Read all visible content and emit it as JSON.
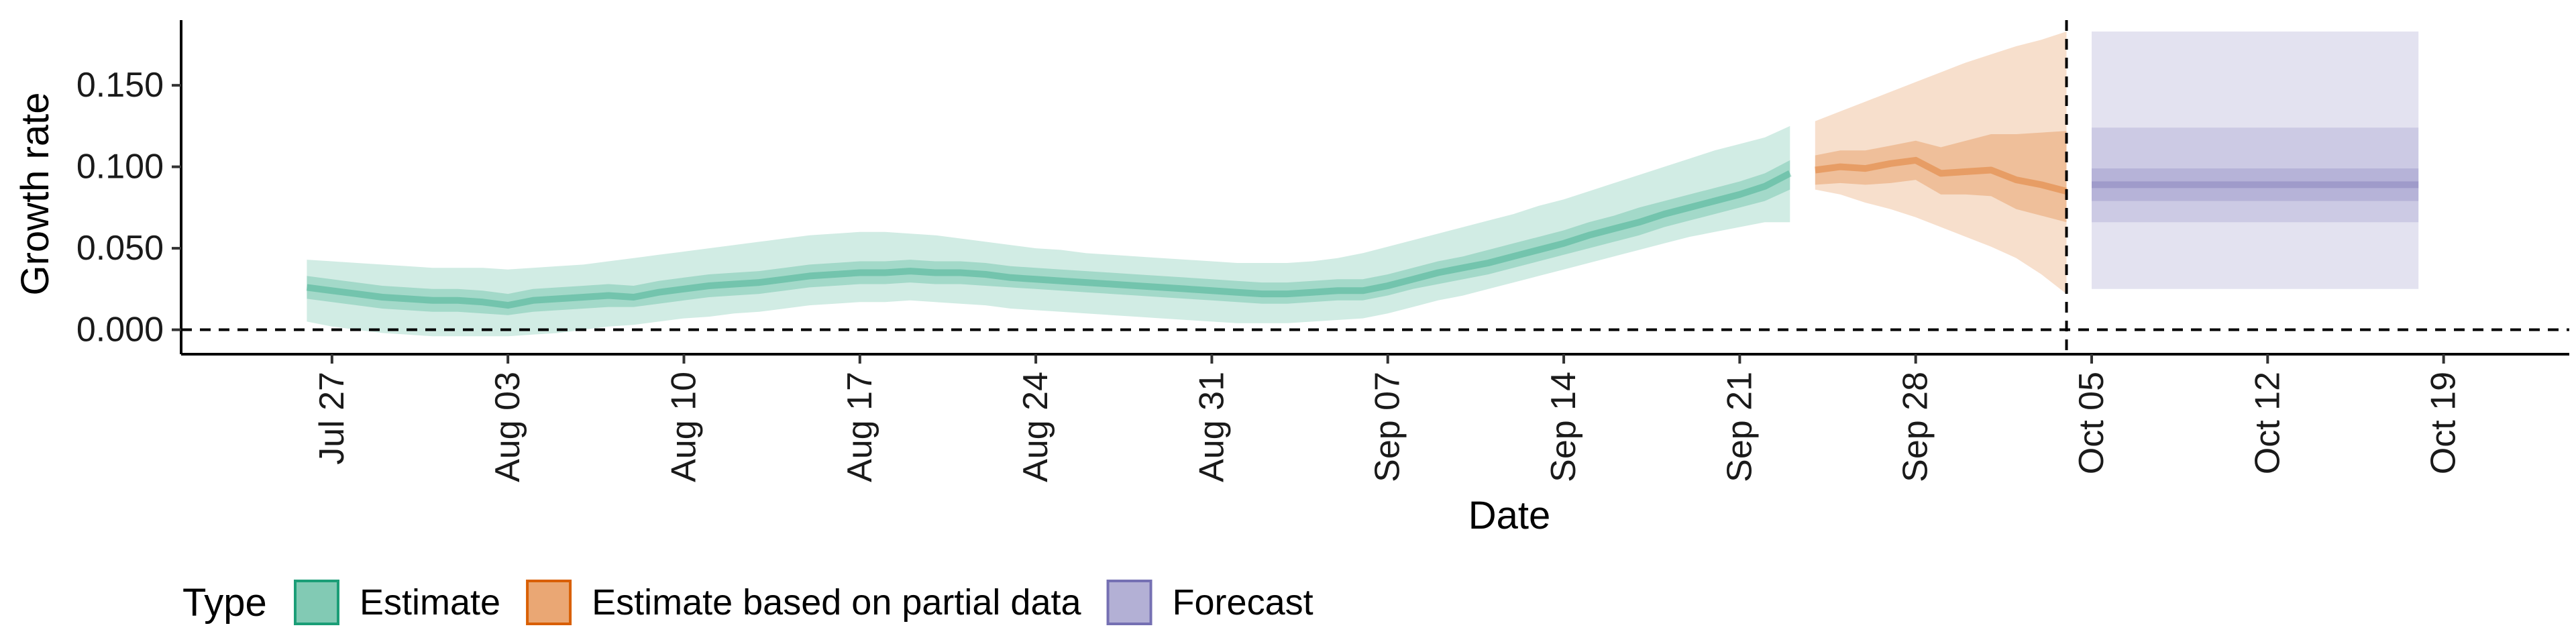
{
  "chart_data": {
    "type": "area",
    "xlabel": "Date",
    "ylabel": "Growth rate",
    "ylim": [
      -0.015,
      0.19
    ],
    "xlim": [
      "2020-07-21",
      "2020-10-24"
    ],
    "y_ticks": [
      0.0,
      0.05,
      0.1,
      0.15
    ],
    "y_tick_labels": [
      "0.000",
      "0.050",
      "0.100",
      "0.150"
    ],
    "x_ticks": [
      "2020-07-27",
      "2020-08-03",
      "2020-08-10",
      "2020-08-17",
      "2020-08-24",
      "2020-08-31",
      "2020-09-07",
      "2020-09-14",
      "2020-09-21",
      "2020-09-28",
      "2020-10-05",
      "2020-10-12",
      "2020-10-19"
    ],
    "x_tick_labels": [
      "Jul 27",
      "Aug 03",
      "Aug 10",
      "Aug 17",
      "Aug 24",
      "Aug 31",
      "Sep 07",
      "Sep 14",
      "Sep 21",
      "Sep 28",
      "Oct 05",
      "Oct 12",
      "Oct 19"
    ],
    "reference_lines": {
      "horizontal_y": 0.0,
      "vertical_x": "2020-10-04"
    },
    "legend": {
      "title": "Type",
      "position": "bottom",
      "entries": [
        {
          "label": "Estimate",
          "color": "#1b9e77"
        },
        {
          "label": "Estimate based on partial data",
          "color": "#d95f02"
        },
        {
          "label": "Forecast",
          "color": "#7570b3"
        }
      ]
    },
    "series": [
      {
        "name": "Estimate",
        "color": "#1b9e77",
        "x": [
          "2020-07-26",
          "2020-07-27",
          "2020-07-28",
          "2020-07-29",
          "2020-07-30",
          "2020-07-31",
          "2020-08-01",
          "2020-08-02",
          "2020-08-03",
          "2020-08-04",
          "2020-08-05",
          "2020-08-06",
          "2020-08-07",
          "2020-08-08",
          "2020-08-09",
          "2020-08-10",
          "2020-08-11",
          "2020-08-12",
          "2020-08-13",
          "2020-08-14",
          "2020-08-15",
          "2020-08-16",
          "2020-08-17",
          "2020-08-18",
          "2020-08-19",
          "2020-08-20",
          "2020-08-21",
          "2020-08-22",
          "2020-08-23",
          "2020-08-24",
          "2020-08-25",
          "2020-08-26",
          "2020-08-27",
          "2020-08-28",
          "2020-08-29",
          "2020-08-30",
          "2020-08-31",
          "2020-09-01",
          "2020-09-02",
          "2020-09-03",
          "2020-09-04",
          "2020-09-05",
          "2020-09-06",
          "2020-09-07",
          "2020-09-08",
          "2020-09-09",
          "2020-09-10",
          "2020-09-11",
          "2020-09-12",
          "2020-09-13",
          "2020-09-14",
          "2020-09-15",
          "2020-09-16",
          "2020-09-17",
          "2020-09-18",
          "2020-09-19",
          "2020-09-20",
          "2020-09-21",
          "2020-09-22",
          "2020-09-23"
        ],
        "median": [
          0.026,
          0.024,
          0.022,
          0.02,
          0.019,
          0.018,
          0.018,
          0.017,
          0.015,
          0.018,
          0.019,
          0.02,
          0.021,
          0.02,
          0.023,
          0.025,
          0.027,
          0.028,
          0.029,
          0.031,
          0.033,
          0.034,
          0.035,
          0.035,
          0.036,
          0.035,
          0.035,
          0.034,
          0.032,
          0.031,
          0.03,
          0.029,
          0.028,
          0.027,
          0.026,
          0.025,
          0.024,
          0.023,
          0.022,
          0.022,
          0.023,
          0.024,
          0.024,
          0.027,
          0.031,
          0.035,
          0.038,
          0.041,
          0.045,
          0.049,
          0.053,
          0.058,
          0.062,
          0.066,
          0.071,
          0.075,
          0.079,
          0.083,
          0.088,
          0.096
        ],
        "lower50": [
          0.019,
          0.017,
          0.015,
          0.013,
          0.012,
          0.011,
          0.011,
          0.01,
          0.009,
          0.011,
          0.012,
          0.013,
          0.014,
          0.014,
          0.016,
          0.018,
          0.02,
          0.021,
          0.022,
          0.024,
          0.026,
          0.027,
          0.028,
          0.028,
          0.029,
          0.028,
          0.028,
          0.027,
          0.026,
          0.025,
          0.024,
          0.023,
          0.022,
          0.021,
          0.02,
          0.019,
          0.018,
          0.017,
          0.016,
          0.016,
          0.017,
          0.018,
          0.018,
          0.021,
          0.025,
          0.028,
          0.031,
          0.034,
          0.038,
          0.042,
          0.046,
          0.05,
          0.054,
          0.058,
          0.063,
          0.067,
          0.071,
          0.075,
          0.079,
          0.086
        ],
        "upper50": [
          0.033,
          0.031,
          0.029,
          0.027,
          0.026,
          0.025,
          0.025,
          0.024,
          0.022,
          0.025,
          0.026,
          0.027,
          0.028,
          0.027,
          0.03,
          0.032,
          0.034,
          0.035,
          0.036,
          0.038,
          0.04,
          0.041,
          0.042,
          0.042,
          0.043,
          0.042,
          0.042,
          0.041,
          0.039,
          0.038,
          0.037,
          0.036,
          0.035,
          0.034,
          0.033,
          0.032,
          0.031,
          0.03,
          0.029,
          0.029,
          0.03,
          0.031,
          0.031,
          0.034,
          0.038,
          0.042,
          0.045,
          0.049,
          0.053,
          0.057,
          0.061,
          0.066,
          0.07,
          0.075,
          0.079,
          0.083,
          0.087,
          0.091,
          0.096,
          0.104
        ],
        "lower90": [
          0.005,
          0.002,
          0.0,
          -0.002,
          -0.003,
          -0.004,
          -0.004,
          -0.004,
          -0.004,
          -0.003,
          -0.002,
          0.0,
          0.002,
          0.003,
          0.005,
          0.007,
          0.008,
          0.01,
          0.011,
          0.013,
          0.015,
          0.016,
          0.017,
          0.017,
          0.018,
          0.017,
          0.016,
          0.015,
          0.013,
          0.012,
          0.011,
          0.01,
          0.009,
          0.008,
          0.007,
          0.006,
          0.005,
          0.004,
          0.004,
          0.004,
          0.005,
          0.006,
          0.007,
          0.01,
          0.014,
          0.018,
          0.021,
          0.025,
          0.029,
          0.033,
          0.037,
          0.041,
          0.045,
          0.049,
          0.053,
          0.057,
          0.06,
          0.063,
          0.066,
          0.066
        ],
        "upper90": [
          0.043,
          0.042,
          0.041,
          0.04,
          0.039,
          0.038,
          0.038,
          0.038,
          0.037,
          0.038,
          0.039,
          0.04,
          0.042,
          0.044,
          0.046,
          0.048,
          0.05,
          0.052,
          0.054,
          0.056,
          0.058,
          0.059,
          0.06,
          0.06,
          0.059,
          0.058,
          0.056,
          0.054,
          0.052,
          0.05,
          0.049,
          0.047,
          0.046,
          0.045,
          0.044,
          0.043,
          0.042,
          0.041,
          0.041,
          0.041,
          0.042,
          0.044,
          0.047,
          0.051,
          0.055,
          0.059,
          0.063,
          0.067,
          0.071,
          0.076,
          0.08,
          0.085,
          0.09,
          0.095,
          0.1,
          0.105,
          0.11,
          0.114,
          0.118,
          0.125
        ]
      },
      {
        "name": "Estimate based on partial data",
        "color": "#d95f02",
        "x": [
          "2020-09-24",
          "2020-09-25",
          "2020-09-26",
          "2020-09-27",
          "2020-09-28",
          "2020-09-29",
          "2020-09-30",
          "2020-10-01",
          "2020-10-02",
          "2020-10-03",
          "2020-10-04"
        ],
        "median": [
          0.098,
          0.1,
          0.099,
          0.102,
          0.104,
          0.096,
          0.097,
          0.098,
          0.092,
          0.089,
          0.085
        ],
        "lower50": [
          0.089,
          0.09,
          0.089,
          0.09,
          0.092,
          0.083,
          0.083,
          0.082,
          0.074,
          0.07,
          0.066
        ],
        "upper50": [
          0.107,
          0.11,
          0.11,
          0.113,
          0.116,
          0.112,
          0.116,
          0.12,
          0.12,
          0.121,
          0.122
        ],
        "lower90": [
          0.086,
          0.083,
          0.078,
          0.074,
          0.069,
          0.063,
          0.057,
          0.051,
          0.044,
          0.034,
          0.022
        ],
        "upper90": [
          0.128,
          0.134,
          0.14,
          0.146,
          0.152,
          0.158,
          0.164,
          0.169,
          0.174,
          0.178,
          0.183
        ]
      },
      {
        "name": "Forecast",
        "color": "#7570b3",
        "x": [
          "2020-10-05",
          "2020-10-18"
        ],
        "median": [
          0.089,
          0.089
        ],
        "lower50": [
          0.079,
          0.079
        ],
        "upper50": [
          0.099,
          0.099
        ],
        "lower_mid": [
          0.066,
          0.066
        ],
        "upper_mid": [
          0.124,
          0.124
        ],
        "lower90": [
          0.025,
          0.025
        ],
        "upper90": [
          0.183,
          0.183
        ]
      }
    ]
  }
}
